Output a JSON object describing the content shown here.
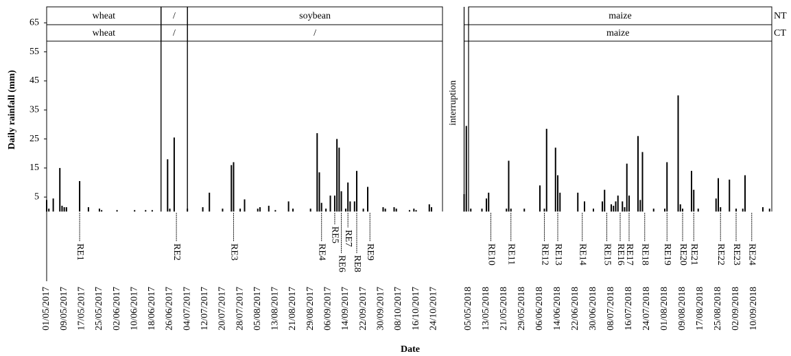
{
  "chart_data": {
    "type": "bar",
    "ylabel": "Daily rainfall (mm)",
    "xlabel": "Date",
    "annotation": "interruption",
    "ylim": [
      -24,
      70.5
    ],
    "yticks": [
      5,
      15,
      25,
      35,
      45,
      55,
      65
    ],
    "color": "#000000",
    "xlim": [
      [
        "01/05/2017",
        "28/10/2017"
      ],
      [
        "01/05/2018",
        "18/09/2018"
      ]
    ],
    "xticks": [
      "01/05/2017",
      "09/05/2017",
      "17/05/2017",
      "25/05/2017",
      "02/06/2017",
      "10/06/2017",
      "18/06/2017",
      "26/06/2017",
      "04/07/2017",
      "12/07/2017",
      "20/07/2017",
      "28/07/2017",
      "05/08/2017",
      "13/08/2017",
      "21/08/2017",
      "29/08/2017",
      "06/09/2017",
      "14/09/2017",
      "22/09/2017",
      "30/09/2017",
      "08/10/2017",
      "16/10/2017",
      "24/10/2017",
      "05/05/2018",
      "13/05/2018",
      "21/05/2018",
      "29/05/2018",
      "06/06/2018",
      "14/06/2018",
      "22/06/2018",
      "30/06/2018",
      "08/07/2018",
      "16/07/2018",
      "24/07/2018",
      "01/08/2018",
      "09/08/2018",
      "17/08/2018",
      "25/08/2018",
      "02/09/2018",
      "10/09/2018"
    ],
    "x": [
      "01/05/2017",
      "02/05/2017",
      "04/05/2017",
      "07/05/2017",
      "08/05/2017",
      "09/05/2017",
      "10/05/2017",
      "16/05/2017",
      "20/05/2017",
      "25/05/2017",
      "26/05/2017",
      "02/06/2017",
      "10/06/2017",
      "15/06/2017",
      "18/06/2017",
      "25/06/2017",
      "26/06/2017",
      "28/06/2017",
      "04/07/2017",
      "11/07/2017",
      "14/07/2017",
      "20/07/2017",
      "24/07/2017",
      "25/07/2017",
      "28/07/2017",
      "30/07/2017",
      "05/08/2017",
      "06/08/2017",
      "10/08/2017",
      "13/08/2017",
      "19/08/2017",
      "21/08/2017",
      "29/08/2017",
      "01/09/2017",
      "02/09/2017",
      "03/09/2017",
      "05/09/2017",
      "07/09/2017",
      "09/09/2017",
      "10/09/2017",
      "11/09/2017",
      "12/09/2017",
      "14/09/2017",
      "15/09/2017",
      "16/09/2017",
      "18/09/2017",
      "19/09/2017",
      "22/09/2017",
      "24/09/2017",
      "01/10/2017",
      "02/10/2017",
      "06/10/2017",
      "07/10/2017",
      "13/10/2017",
      "15/10/2017",
      "16/10/2017",
      "22/10/2017",
      "23/10/2017",
      "03/05/2018",
      "04/05/2018",
      "06/05/2018",
      "11/05/2018",
      "13/05/2018",
      "14/05/2018",
      "22/05/2018",
      "23/05/2018",
      "24/05/2018",
      "30/05/2018",
      "06/06/2018",
      "08/06/2018",
      "09/06/2018",
      "13/06/2018",
      "14/06/2018",
      "15/06/2018",
      "23/06/2018",
      "26/06/2018",
      "30/06/2018",
      "04/07/2018",
      "05/07/2018",
      "08/07/2018",
      "09/07/2018",
      "10/07/2018",
      "11/07/2018",
      "13/07/2018",
      "14/07/2018",
      "15/07/2018",
      "16/07/2018",
      "20/07/2018",
      "21/07/2018",
      "22/07/2018",
      "27/07/2018",
      "01/08/2018",
      "02/08/2018",
      "07/08/2018",
      "08/08/2018",
      "09/08/2018",
      "13/08/2018",
      "14/08/2018",
      "16/08/2018",
      "24/08/2018",
      "25/08/2018",
      "26/08/2018",
      "30/08/2018",
      "02/09/2018",
      "05/09/2018",
      "06/09/2018",
      "14/09/2018",
      "17/09/2018"
    ],
    "values": [
      4,
      1,
      4.5,
      15,
      2,
      1.5,
      1.5,
      10.5,
      1.5,
      1,
      0.5,
      0.5,
      0.5,
      0.5,
      0.5,
      18,
      1,
      25.5,
      1,
      1.5,
      6.5,
      1,
      16,
      17,
      1,
      4.2,
      1,
      1.5,
      2,
      0.5,
      3.5,
      1,
      1,
      27,
      13.5,
      3,
      1,
      5.5,
      5.5,
      25,
      22,
      7,
      1,
      10,
      3.5,
      3.5,
      14,
      1,
      8.5,
      1.5,
      1,
      1.5,
      1,
      0.5,
      1,
      0.5,
      2.5,
      1.5,
      6,
      29.5,
      1,
      1,
      4.5,
      6.5,
      1,
      17.5,
      1,
      1,
      9,
      1,
      28.5,
      22,
      12.5,
      6.5,
      6.5,
      3.5,
      1,
      3.5,
      7.5,
      2.5,
      2,
      3.5,
      5.5,
      3.5,
      1.5,
      16.5,
      5.5,
      26,
      4,
      20.5,
      1,
      1,
      17,
      40,
      2.5,
      1,
      14,
      7.5,
      1,
      4.5,
      11.5,
      1.5,
      11,
      1,
      1,
      12.5,
      1.5,
      1
    ],
    "bands": [
      {
        "row": "NT",
        "segments": [
          {
            "label": "wheat",
            "start": "01/05/2017",
            "end": "22/06/2017"
          },
          {
            "label": "/",
            "start": "22/06/2017",
            "end": "04/07/2017"
          },
          {
            "label": "soybean",
            "start": "04/07/2017",
            "end": "28/10/2017"
          },
          {
            "label": "maize",
            "start": "05/05/2018",
            "end": "18/09/2018"
          }
        ]
      },
      {
        "row": "CT",
        "segments": [
          {
            "label": "wheat",
            "start": "01/05/2017",
            "end": "22/06/2017"
          },
          {
            "label": "/",
            "start": "22/06/2017",
            "end": "04/07/2017"
          },
          {
            "label": "/",
            "start": "04/07/2017",
            "end": "28/10/2017"
          },
          {
            "label": "maize",
            "start": "03/05/2018",
            "end": "18/09/2018"
          }
        ]
      }
    ],
    "events": [
      {
        "label": "RE1",
        "x": "16/05/2017"
      },
      {
        "label": "RE2",
        "x": "29/06/2017"
      },
      {
        "label": "RE3",
        "x": "25/07/2017"
      },
      {
        "label": "RE4",
        "x": "03/09/2017"
      },
      {
        "label": "RE5",
        "x": "09/09/2017"
      },
      {
        "label": "RE6",
        "x": "12/09/2017"
      },
      {
        "label": "RE7",
        "x": "15/09/2017"
      },
      {
        "label": "RE8",
        "x": "19/09/2017"
      },
      {
        "label": "RE9",
        "x": "25/09/2017"
      },
      {
        "label": "RE10",
        "x": "15/05/2018"
      },
      {
        "label": "RE11",
        "x": "24/05/2018"
      },
      {
        "label": "RE12",
        "x": "08/06/2018"
      },
      {
        "label": "RE13",
        "x": "14/06/2018"
      },
      {
        "label": "RE14",
        "x": "25/06/2018"
      },
      {
        "label": "RE15",
        "x": "06/07/2018"
      },
      {
        "label": "RE16",
        "x": "12/07/2018"
      },
      {
        "label": "RE17",
        "x": "16/07/2018"
      },
      {
        "label": "RE18",
        "x": "23/07/2018"
      },
      {
        "label": "RE19",
        "x": "02/08/2018"
      },
      {
        "label": "RE20",
        "x": "09/08/2018"
      },
      {
        "label": "RE21",
        "x": "14/08/2018"
      },
      {
        "label": "RE22",
        "x": "26/08/2018"
      },
      {
        "label": "RE23",
        "x": "02/09/2018"
      },
      {
        "label": "RE24",
        "x": "09/09/2018"
      }
    ]
  }
}
